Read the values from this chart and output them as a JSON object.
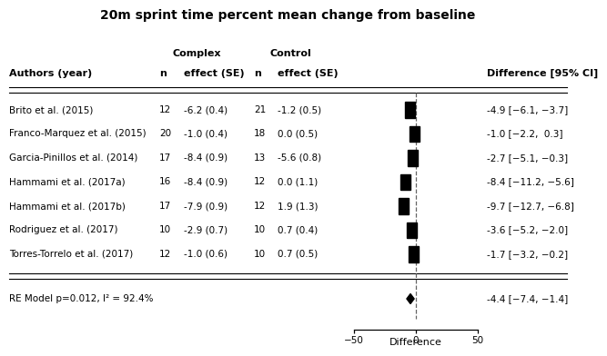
{
  "title": "20m sprint time percent mean change from baseline",
  "authors_label": "Authors (year)",
  "complex_header": "Complex",
  "control_header": "Control",
  "diff_header": "Difference [95% CI]",
  "studies": [
    {
      "author": "Brito et al. (2015)",
      "cn": 12,
      "ce": "-6.2 (0.4)",
      "tn": 21,
      "te": "-1.2 (0.5)",
      "diff": -4.9,
      "ci_lo": -6.1,
      "ci_hi": -3.7,
      "diff_str": "-4.9 [−6.1, −3.7]"
    },
    {
      "author": "Franco-Marquez et al. (2015)",
      "cn": 20,
      "ce": "-1.0 (0.4)",
      "tn": 18,
      "te": "0.0 (0.5)",
      "diff": -1.0,
      "ci_lo": -2.2,
      "ci_hi": 0.3,
      "diff_str": "-1.0 [−2.2,  0.3]"
    },
    {
      "author": "Garcia-Pinillos et al. (2014)",
      "cn": 17,
      "ce": "-8.4 (0.9)",
      "tn": 13,
      "te": "-5.6 (0.8)",
      "diff": -2.7,
      "ci_lo": -5.1,
      "ci_hi": -0.3,
      "diff_str": "-2.7 [−5.1, −0.3]"
    },
    {
      "author": "Hammami et al. (2017a)",
      "cn": 16,
      "ce": "-8.4 (0.9)",
      "tn": 12,
      "te": "0.0 (1.1)",
      "diff": -8.4,
      "ci_lo": -11.2,
      "ci_hi": -5.6,
      "diff_str": "-8.4 [−11.2, −5.6]"
    },
    {
      "author": "Hammami et al. (2017b)",
      "cn": 17,
      "ce": "-7.9 (0.9)",
      "tn": 12,
      "te": "1.9 (1.3)",
      "diff": -9.7,
      "ci_lo": -12.7,
      "ci_hi": -6.8,
      "diff_str": "-9.7 [−12.7, −6.8]"
    },
    {
      "author": "Rodriguez et al. (2017)",
      "cn": 10,
      "ce": "-2.9 (0.7)",
      "tn": 10,
      "te": "0.7 (0.4)",
      "diff": -3.6,
      "ci_lo": -5.2,
      "ci_hi": -2.0,
      "diff_str": "-3.6 [−5.2, −2.0]"
    },
    {
      "author": "Torres-Torrelo et al. (2017)",
      "cn": 12,
      "ce": "-1.0 (0.6)",
      "tn": 10,
      "te": "0.7 (0.5)",
      "diff": -1.7,
      "ci_lo": -3.2,
      "ci_hi": -0.2,
      "diff_str": "-1.7 [−3.2, −0.2]"
    }
  ],
  "re_model": {
    "label": "RE Model p=0.012, I² = 92.4%",
    "diff": -4.4,
    "ci_lo": -7.4,
    "ci_hi": -1.4,
    "diff_str": "-4.4 [−7.4, −1.4]"
  },
  "axis_min": -50,
  "axis_max": 50,
  "axis_ticks": [
    -50,
    0,
    50
  ],
  "xlabel": "Difference",
  "bg_color": "#ffffff",
  "text_color": "#000000"
}
